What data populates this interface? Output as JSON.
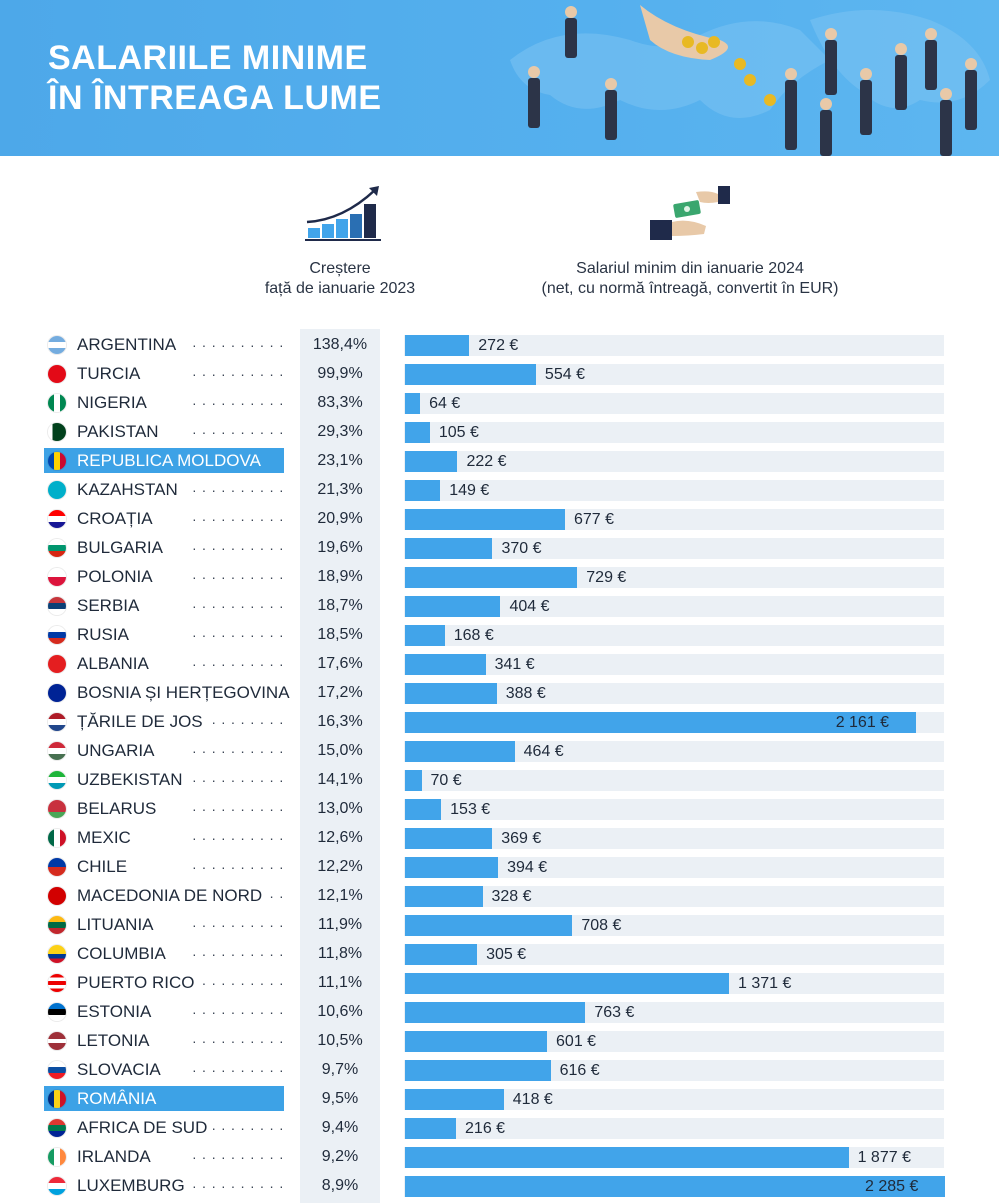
{
  "title": {
    "line1": "SALARIILE MINIME",
    "line2": "ÎN ÎNTREAGA LUME"
  },
  "columns": {
    "growth_line1": "Creștere",
    "growth_line2": "față de ianuarie 2023",
    "wage_line1": "Salariul minim din ianuarie 2024",
    "wage_line2": "(net, cu normă întreagă, convertit în EUR)"
  },
  "colors": {
    "banner": "#4da8e9",
    "bar": "#41a4ea",
    "highlight": "#3da2e6",
    "track": "#ebf0f5"
  },
  "chart_data": {
    "type": "bar",
    "orientation": "horizontal",
    "unit": "€",
    "categories": [
      "ARGENTINA",
      "TURCIA",
      "NIGERIA",
      "PAKISTAN",
      "REPUBLICA MOLDOVA",
      "KAZAHSTAN",
      "CROAȚIA",
      "BULGARIA",
      "POLONIA",
      "SERBIA",
      "RUSIA",
      "ALBANIA",
      "BOSNIA ȘI HERȚEGOVINA",
      "ȚĂRILE DE JOS",
      "UNGARIA",
      "UZBEKISTAN",
      "BELARUS",
      "MEXIC",
      "CHILE",
      "MACEDONIA DE NORD",
      "LITUANIA",
      "COLUMBIA",
      "PUERTO RICO",
      "ESTONIA",
      "LETONIA",
      "SLOVACIA",
      "ROMÂNIA",
      "AFRICA DE SUD",
      "IRLANDA",
      "LUXEMBURG"
    ],
    "growth_labels": [
      "138,4%",
      "99,9%",
      "83,3%",
      "29,3%",
      "23,1%",
      "21,3%",
      "20,9%",
      "19,6%",
      "18,9%",
      "18,7%",
      "18,5%",
      "17,6%",
      "17,2%",
      "16,3%",
      "15,0%",
      "14,1%",
      "13,0%",
      "12,6%",
      "12,2%",
      "12,1%",
      "11,9%",
      "11,8%",
      "11,1%",
      "10,6%",
      "10,5%",
      "9,7%",
      "9,5%",
      "9,4%",
      "9,2%",
      "8,9%"
    ],
    "values": [
      272,
      554,
      64,
      105,
      222,
      149,
      677,
      370,
      729,
      404,
      168,
      341,
      388,
      2161,
      464,
      70,
      153,
      369,
      394,
      328,
      708,
      305,
      1371,
      763,
      601,
      616,
      418,
      216,
      1877,
      2285
    ],
    "value_labels": [
      "272 €",
      "554 €",
      "64 €",
      "105 €",
      "222 €",
      "149 €",
      "677 €",
      "370 €",
      "729 €",
      "404 €",
      "168 €",
      "341 €",
      "388 €",
      "2 161 €",
      "464 €",
      "70 €",
      "153 €",
      "369 €",
      "394 €",
      "328 €",
      "708 €",
      "305 €",
      "1 371 €",
      "763 €",
      "601 €",
      "616 €",
      "418 €",
      "216 €",
      "1 877 €",
      "2 285 €"
    ],
    "highlighted": [
      "REPUBLICA MOLDOVA",
      "ROMÂNIA"
    ],
    "xlim": [
      0,
      2285
    ]
  }
}
